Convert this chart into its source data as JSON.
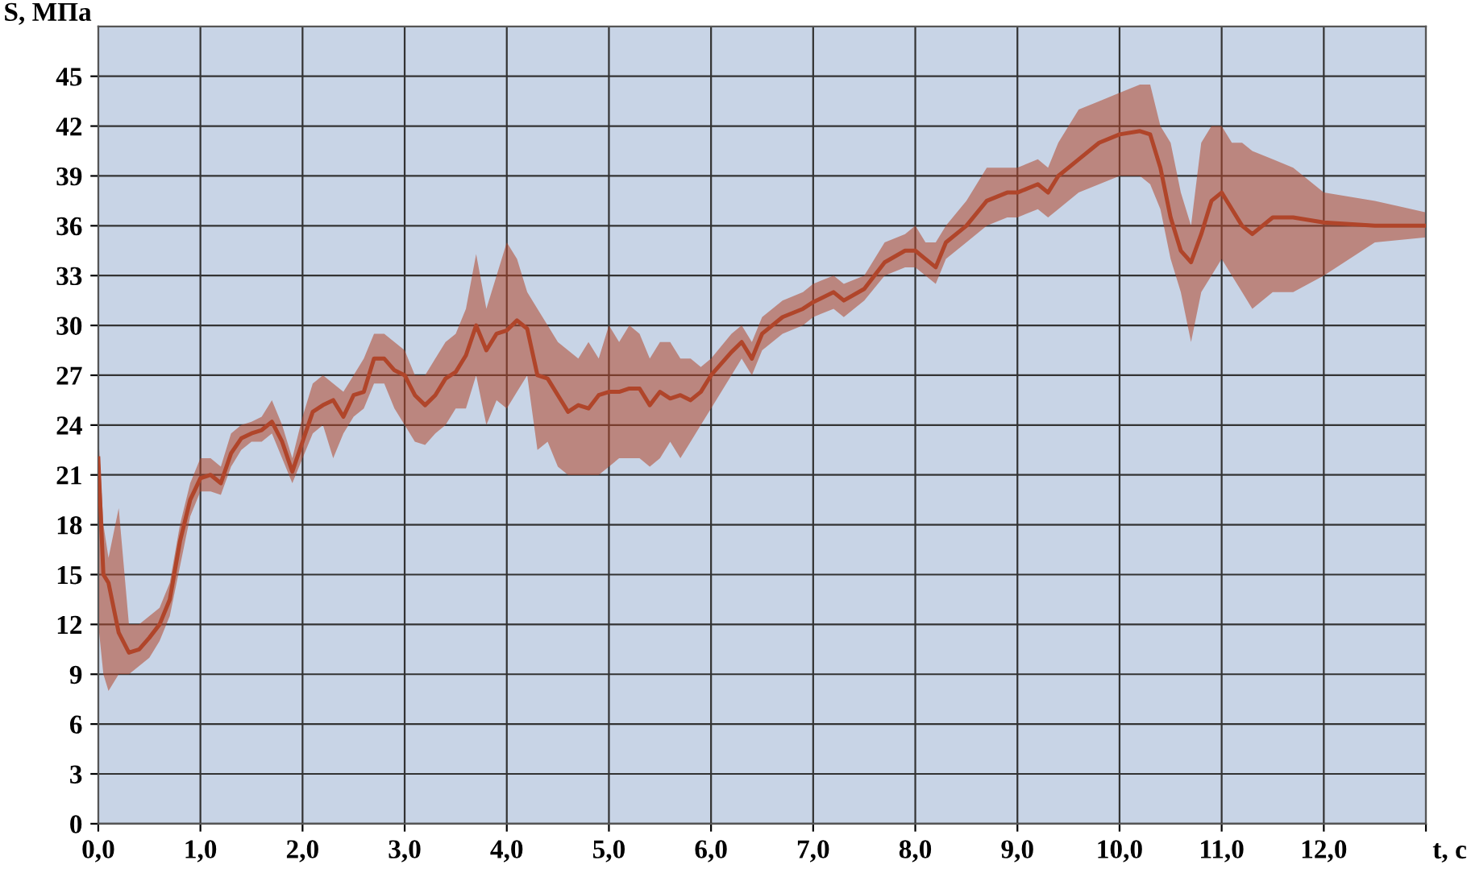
{
  "chart_data": {
    "type": "line",
    "xlabel": "t, c",
    "ylabel": "S, МПа",
    "xlim": [
      0,
      13
    ],
    "ylim": [
      0,
      48
    ],
    "xticks": [
      {
        "value": 0,
        "label": "0,0"
      },
      {
        "value": 1,
        "label": "1,0"
      },
      {
        "value": 2,
        "label": "2,0"
      },
      {
        "value": 3,
        "label": "3,0"
      },
      {
        "value": 4,
        "label": "4,0"
      },
      {
        "value": 5,
        "label": "5,0"
      },
      {
        "value": 6,
        "label": "6,0"
      },
      {
        "value": 7,
        "label": "7,0"
      },
      {
        "value": 8,
        "label": "8,0"
      },
      {
        "value": 9,
        "label": "9,0"
      },
      {
        "value": 10,
        "label": "10,0"
      },
      {
        "value": 11,
        "label": "11,0"
      },
      {
        "value": 12,
        "label": "12,0"
      },
      {
        "value": 13,
        "label": null
      }
    ],
    "yticks": [
      0,
      3,
      6,
      9,
      12,
      15,
      18,
      21,
      24,
      27,
      30,
      33,
      36,
      39,
      42,
      45
    ],
    "grid": true,
    "marker": "none",
    "line_style": "solid",
    "series": [
      {
        "color": "#b0452a",
        "x": [
          0.0,
          0.05,
          0.1,
          0.2,
          0.3,
          0.4,
          0.5,
          0.6,
          0.7,
          0.8,
          0.9,
          1.0,
          1.1,
          1.2,
          1.3,
          1.4,
          1.5,
          1.6,
          1.7,
          1.8,
          1.9,
          2.0,
          2.1,
          2.2,
          2.3,
          2.4,
          2.5,
          2.6,
          2.7,
          2.8,
          2.9,
          3.0,
          3.1,
          3.2,
          3.3,
          3.4,
          3.5,
          3.6,
          3.7,
          3.8,
          3.9,
          4.0,
          4.1,
          4.2,
          4.3,
          4.4,
          4.5,
          4.6,
          4.7,
          4.8,
          4.9,
          5.0,
          5.1,
          5.2,
          5.3,
          5.4,
          5.5,
          5.6,
          5.7,
          5.8,
          5.9,
          6.0,
          6.2,
          6.3,
          6.4,
          6.5,
          6.7,
          6.9,
          7.0,
          7.2,
          7.3,
          7.5,
          7.7,
          7.9,
          8.0,
          8.1,
          8.2,
          8.3,
          8.5,
          8.7,
          8.9,
          9.0,
          9.2,
          9.3,
          9.4,
          9.6,
          9.8,
          10.0,
          10.2,
          10.3,
          10.4,
          10.5,
          10.6,
          10.7,
          10.8,
          10.9,
          11.0,
          11.1,
          11.2,
          11.3,
          11.5,
          11.7,
          12.0,
          12.5,
          13.0
        ],
        "values": [
          22,
          15,
          14.5,
          11.5,
          10.3,
          10.5,
          11.2,
          12,
          13.5,
          17,
          19.5,
          20.8,
          21,
          20.5,
          22.3,
          23.2,
          23.5,
          23.7,
          24.2,
          23,
          21.2,
          23,
          24.8,
          25.2,
          25.5,
          24.5,
          25.8,
          26,
          28,
          28,
          27.3,
          27,
          25.8,
          25.2,
          25.8,
          26.8,
          27.2,
          28.2,
          30,
          28.5,
          29.5,
          29.7,
          30.3,
          29.8,
          27,
          26.8,
          25.8,
          24.8,
          25.2,
          25,
          25.8,
          26,
          26,
          26.2,
          26.2,
          25.2,
          26,
          25.6,
          25.8,
          25.5,
          26,
          27,
          28.4,
          29,
          28,
          29.5,
          30.5,
          31,
          31.4,
          32,
          31.5,
          32.2,
          33.8,
          34.5,
          34.5,
          34,
          33.5,
          35,
          36,
          37.5,
          38,
          38,
          38.5,
          38,
          39,
          40,
          41,
          41.5,
          41.7,
          41.5,
          39.5,
          36.5,
          34.5,
          33.8,
          35.5,
          37.5,
          38,
          37,
          36,
          35.5,
          36.5,
          36.5,
          36.2,
          36,
          36
        ],
        "lower": [
          12,
          9,
          8,
          9,
          9,
          9.5,
          10,
          11,
          12.5,
          15.5,
          18.5,
          20,
          20,
          19.8,
          21.5,
          22.5,
          23,
          23,
          23.5,
          22,
          20.5,
          22,
          23.5,
          24,
          22,
          23.5,
          24.5,
          25,
          26.5,
          26.5,
          25,
          24,
          23,
          22.8,
          23.5,
          24,
          25,
          25,
          27,
          24,
          25.5,
          25,
          26,
          27,
          22.5,
          23,
          21.5,
          21,
          21,
          21,
          21,
          21.5,
          22,
          22,
          22,
          21.5,
          22,
          23,
          22,
          23,
          24,
          25,
          27,
          28,
          27,
          28.5,
          29.5,
          30,
          30.5,
          31,
          30.5,
          31.5,
          33,
          33.5,
          33.5,
          33,
          32.5,
          34,
          35,
          36,
          36.5,
          36.5,
          37,
          36.5,
          37,
          38,
          38.5,
          39,
          39,
          38.5,
          37,
          34,
          32,
          29,
          32,
          33,
          34,
          33,
          32,
          31,
          32,
          32,
          33,
          35,
          35.3
        ],
        "upper": [
          23.5,
          18,
          16,
          19,
          12,
          12,
          12.5,
          13,
          14.5,
          18,
          20.5,
          22,
          22,
          21.5,
          23.5,
          24,
          24.2,
          24.5,
          25.5,
          24,
          22,
          24.5,
          26.5,
          27,
          26.5,
          26,
          27,
          28,
          29.5,
          29.5,
          29,
          28.5,
          27,
          27,
          28,
          29,
          29.5,
          31,
          34.3,
          31,
          33,
          35,
          34,
          32,
          31,
          30,
          29,
          28.5,
          28,
          29,
          28,
          30,
          29,
          30,
          29.5,
          28,
          29,
          29,
          28,
          28,
          27.5,
          28,
          29.5,
          30,
          29,
          30.5,
          31.5,
          32,
          32.5,
          33,
          32.5,
          33,
          35,
          35.5,
          36,
          35,
          35,
          36,
          37.5,
          39.5,
          39.5,
          39.5,
          40,
          39.5,
          41,
          43,
          43.5,
          44,
          44.5,
          44.5,
          42,
          41,
          38,
          36,
          41,
          42,
          42,
          41,
          41,
          40.5,
          40,
          39.5,
          38,
          37.5,
          36.8
        ]
      }
    ]
  }
}
